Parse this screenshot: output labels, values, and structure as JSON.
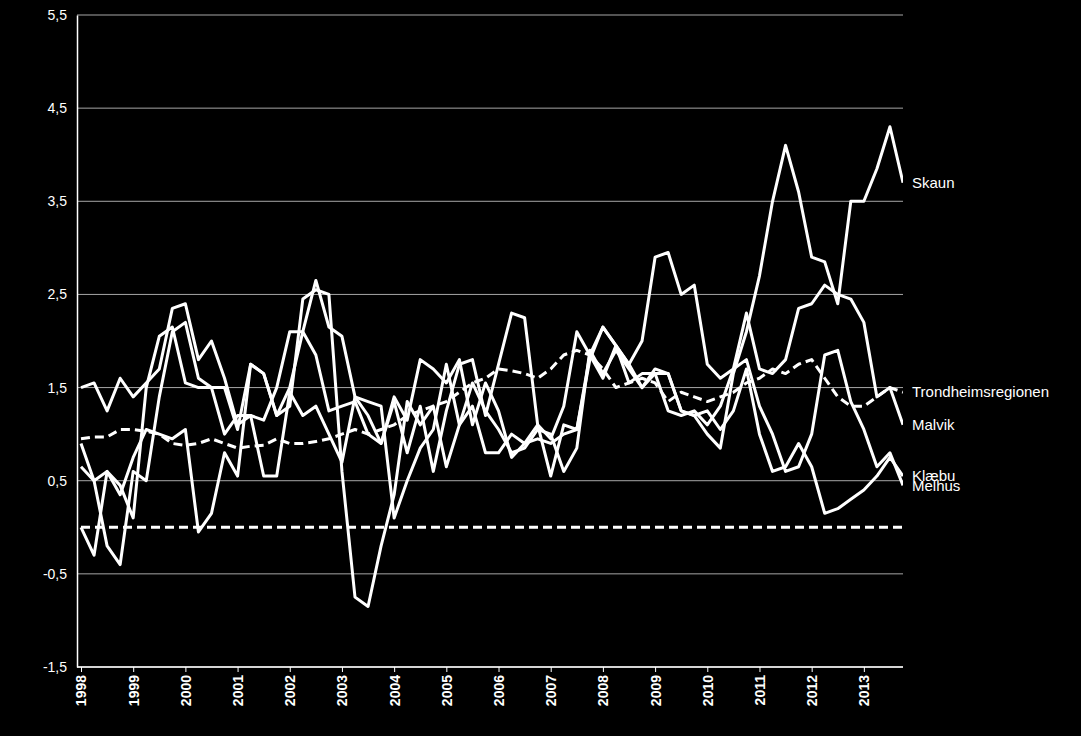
{
  "chart_data": {
    "type": "line",
    "grid": true,
    "ylim": [
      -1.5,
      5.5
    ],
    "yticks": [
      {
        "value": -1.5,
        "label": "-1,5"
      },
      {
        "value": -0.5,
        "label": "-0,5"
      },
      {
        "value": 0.5,
        "label": "0,5"
      },
      {
        "value": 1.5,
        "label": "1,5"
      },
      {
        "value": 2.5,
        "label": "2,5"
      },
      {
        "value": 3.5,
        "label": "3,5"
      },
      {
        "value": 4.5,
        "label": "4,5"
      },
      {
        "value": 5.5,
        "label": "5,5"
      }
    ],
    "categories": [
      "1998",
      null,
      null,
      null,
      "1999",
      null,
      null,
      null,
      "2000",
      null,
      null,
      null,
      "2001",
      null,
      null,
      null,
      "2002",
      null,
      null,
      null,
      "2003",
      null,
      null,
      null,
      "2004",
      null,
      null,
      null,
      "2005",
      null,
      null,
      null,
      "2006",
      null,
      null,
      null,
      "2007",
      null,
      null,
      null,
      "2008",
      null,
      null,
      null,
      "2009",
      null,
      null,
      null,
      "2010",
      null,
      null,
      null,
      "2011",
      null,
      null,
      null,
      "2012",
      null,
      null,
      null,
      "2013",
      null,
      null,
      null
    ],
    "series": [
      {
        "name": "Skaun",
        "color": "#ffffff",
        "line_style": "solid",
        "values": [
          0.9,
          0.5,
          -0.2,
          -0.4,
          0.6,
          0.5,
          1.4,
          2.1,
          2.2,
          1.6,
          1.5,
          1.5,
          1.05,
          1.75,
          1.65,
          1.2,
          1.3,
          2.45,
          2.55,
          2.5,
          0.6,
          -0.75,
          -0.85,
          -0.2,
          0.35,
          1.35,
          1.1,
          1.3,
          0.65,
          1.1,
          1.55,
          1.25,
          1.05,
          0.8,
          0.85,
          1.05,
          1.0,
          0.6,
          0.85,
          1.9,
          1.65,
          1.9,
          1.7,
          1.5,
          1.7,
          1.65,
          1.25,
          1.2,
          1.0,
          0.85,
          1.65,
          2.1,
          2.7,
          3.5,
          4.1,
          3.6,
          2.9,
          2.85,
          2.4,
          3.5,
          3.5,
          3.85,
          4.3,
          3.7
        ]
      },
      {
        "name": "Trondheimsregionen",
        "color": "#ffffff",
        "line_style": "dashed",
        "values": [
          0.95,
          0.97,
          0.97,
          1.05,
          1.05,
          1.03,
          1.0,
          0.9,
          0.88,
          0.9,
          0.95,
          0.9,
          0.85,
          0.87,
          0.88,
          0.95,
          0.9,
          0.9,
          0.92,
          0.95,
          1.0,
          1.05,
          1.0,
          1.05,
          1.1,
          1.2,
          1.25,
          1.3,
          1.35,
          1.45,
          1.55,
          1.6,
          1.7,
          1.68,
          1.65,
          1.6,
          1.7,
          1.85,
          1.9,
          1.85,
          1.7,
          1.5,
          1.55,
          1.6,
          1.55,
          1.35,
          1.45,
          1.4,
          1.35,
          1.4,
          1.45,
          1.55,
          1.6,
          1.7,
          1.65,
          1.75,
          1.8,
          1.6,
          1.4,
          1.3,
          1.3,
          1.4,
          1.5,
          1.45
        ]
      },
      {
        "name": "Malvik",
        "color": "#ffffff",
        "line_style": "solid",
        "values": [
          1.5,
          1.55,
          1.25,
          1.6,
          1.4,
          1.55,
          1.7,
          2.35,
          2.4,
          1.8,
          2.0,
          1.6,
          1.1,
          1.2,
          1.15,
          1.5,
          2.1,
          2.1,
          2.65,
          2.15,
          2.05,
          1.4,
          1.2,
          0.9,
          1.35,
          0.8,
          1.3,
          0.6,
          1.25,
          1.75,
          1.8,
          1.2,
          1.75,
          2.3,
          2.25,
          1.1,
          0.95,
          1.3,
          2.1,
          1.85,
          2.15,
          1.95,
          1.75,
          2.0,
          2.9,
          2.95,
          2.5,
          2.6,
          1.75,
          1.6,
          1.7,
          2.3,
          1.7,
          1.65,
          1.8,
          2.35,
          2.4,
          2.6,
          2.5,
          2.45,
          2.2,
          1.4,
          1.5,
          1.1
        ]
      },
      {
        "name": "Klæbu",
        "color": "#ffffff",
        "line_style": "solid",
        "values": [
          0.65,
          0.5,
          0.6,
          0.45,
          0.1,
          1.5,
          2.05,
          2.15,
          1.55,
          1.5,
          1.5,
          1.0,
          1.2,
          1.2,
          0.55,
          0.55,
          1.45,
          1.2,
          1.3,
          1.0,
          0.7,
          1.4,
          1.35,
          1.3,
          0.1,
          0.5,
          0.85,
          1.05,
          1.75,
          1.1,
          1.3,
          0.8,
          0.8,
          1.0,
          0.9,
          0.95,
          0.9,
          1.0,
          1.05,
          1.8,
          2.15,
          1.95,
          1.75,
          1.5,
          1.65,
          1.65,
          1.25,
          1.2,
          1.25,
          1.05,
          1.25,
          1.7,
          1.0,
          0.6,
          0.65,
          0.9,
          0.65,
          0.15,
          0.2,
          0.3,
          0.4,
          0.55,
          0.75,
          0.55
        ]
      },
      {
        "name": "Melhus",
        "color": "#ffffff",
        "line_style": "solid",
        "values": [
          0.0,
          -0.3,
          0.6,
          0.35,
          0.75,
          1.05,
          1.0,
          0.95,
          1.05,
          -0.05,
          0.15,
          0.8,
          0.55,
          1.75,
          1.65,
          1.2,
          1.5,
          2.1,
          1.85,
          1.25,
          1.3,
          1.35,
          1.0,
          0.9,
          1.4,
          1.15,
          1.8,
          1.7,
          1.55,
          1.8,
          1.1,
          1.55,
          1.25,
          0.75,
          0.9,
          1.1,
          0.55,
          1.1,
          1.05,
          1.85,
          1.6,
          1.95,
          1.55,
          1.65,
          1.65,
          1.25,
          1.2,
          1.25,
          1.1,
          1.3,
          1.7,
          1.8,
          1.3,
          1.0,
          0.6,
          0.65,
          1.0,
          1.85,
          1.9,
          1.35,
          1.05,
          0.65,
          0.8,
          0.45
        ]
      },
      {
        "color": "#ffffff",
        "line_style": "dashed",
        "values": [
          0,
          0,
          0,
          0,
          0,
          0,
          0,
          0,
          0,
          0,
          0,
          0,
          0,
          0,
          0,
          0,
          0,
          0,
          0,
          0,
          0,
          0,
          0,
          0,
          0,
          0,
          0,
          0,
          0,
          0,
          0,
          0,
          0,
          0,
          0,
          0,
          0,
          0,
          0,
          0,
          0,
          0,
          0,
          0,
          0,
          0,
          0,
          0,
          0,
          0,
          0,
          0,
          0,
          0,
          0,
          0,
          0,
          0,
          0,
          0,
          0,
          0,
          0,
          0
        ]
      }
    ]
  }
}
